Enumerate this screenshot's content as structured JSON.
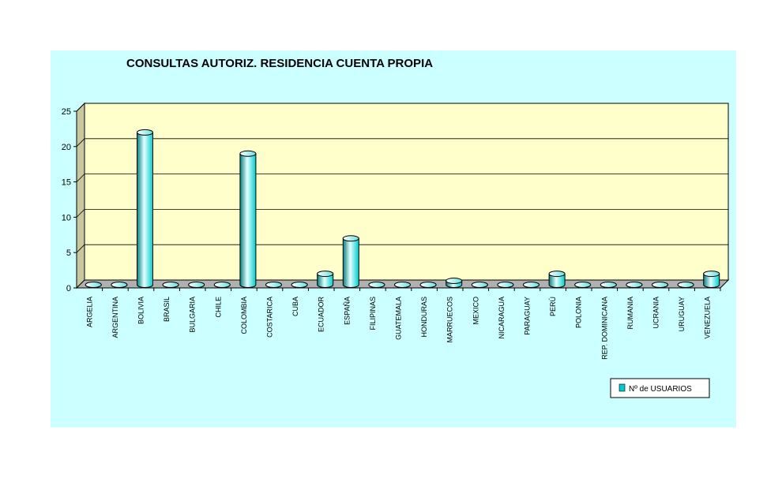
{
  "chart_data": {
    "type": "bar",
    "title": "CONSULTAS AUTORIZ. RESIDENCIA CUENTA PROPIA",
    "xlabel": "",
    "ylabel": "",
    "ylim": [
      0,
      25
    ],
    "yticks": [
      0,
      5,
      10,
      15,
      20,
      25
    ],
    "grid": true,
    "legend_position": "bottom-right",
    "categories": [
      "ARGELIA",
      "ARGENTINA",
      "BOLIVIA",
      "BRASIL",
      "BULGARIA",
      "CHILE",
      "COLOMBIA",
      "COSTARICA",
      "CUBA",
      "ECUADOR",
      "ESPAÑA",
      "FILIPINAS",
      "GUATEMALA",
      "HONDURAS",
      "MARRUECOS",
      "MEXICO",
      "NICARAGUA",
      "PARAGUAY",
      "PERÚ",
      "POLONIA",
      "REP. DOMINICANA",
      "RUMANIA",
      "UCRANIA",
      "URUGUAY",
      "VENEZUELA"
    ],
    "series": [
      {
        "name": "Nº de USUARIOS",
        "values": [
          0,
          0,
          22,
          0,
          0,
          0,
          19,
          0,
          0,
          2,
          7,
          0,
          0,
          0,
          1,
          0,
          0,
          0,
          2,
          0,
          0,
          0,
          0,
          0,
          2
        ]
      }
    ],
    "colors": {
      "background": "#ccffff",
      "plot_back": "#ffffcc",
      "plot_side": "#c8c8a0",
      "plot_floor": "#b0b0b0",
      "bar": "#00cccc",
      "bar_light": "#e6ffff",
      "bar_dark": "#008080"
    }
  }
}
